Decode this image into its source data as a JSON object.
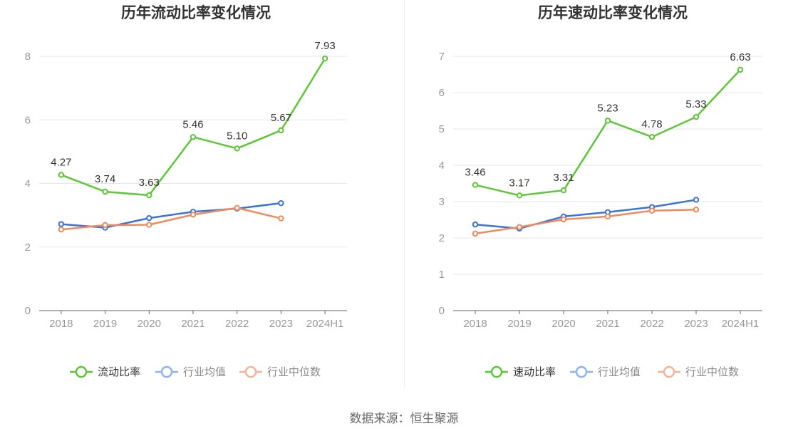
{
  "source": "数据来源：恒生聚源",
  "colors": {
    "main": "#5dc637",
    "avg": "#3a74d6",
    "median": "#f08a5d",
    "grid": "#e6e6e6",
    "axis": "#666666"
  },
  "chart_data": [
    {
      "type": "line",
      "title": "历年流动比率变化情况",
      "categories": [
        "2018",
        "2019",
        "2020",
        "2021",
        "2022",
        "2023",
        "2024H1"
      ],
      "ylim": [
        0,
        8
      ],
      "yticks": [
        0,
        2,
        4,
        6,
        8
      ],
      "grid": true,
      "legend": "bottom-center",
      "series": [
        {
          "name": "流动比率",
          "key": "main",
          "values": [
            4.27,
            3.74,
            3.63,
            5.46,
            5.1,
            5.67,
            7.93
          ],
          "labels": [
            "4.27",
            "3.74",
            "3.63",
            "5.46",
            "5.10",
            "5.67",
            "7.93"
          ]
        },
        {
          "name": "行业均值",
          "key": "avg",
          "values": [
            2.72,
            2.61,
            2.91,
            3.11,
            3.21,
            3.38,
            null
          ]
        },
        {
          "name": "行业中位数",
          "key": "median",
          "values": [
            2.55,
            2.69,
            2.7,
            3.02,
            3.23,
            2.9,
            null
          ]
        }
      ]
    },
    {
      "type": "line",
      "title": "历年速动比率变化情况",
      "categories": [
        "2018",
        "2019",
        "2020",
        "2021",
        "2022",
        "2023",
        "2024H1"
      ],
      "ylim": [
        0,
        7
      ],
      "yticks": [
        0,
        1,
        2,
        3,
        4,
        5,
        6,
        7
      ],
      "grid": true,
      "legend": "bottom-center",
      "series": [
        {
          "name": "速动比率",
          "key": "main",
          "values": [
            3.46,
            3.17,
            3.31,
            5.23,
            4.78,
            5.33,
            6.63
          ],
          "labels": [
            "3.46",
            "3.17",
            "3.31",
            "5.23",
            "4.78",
            "5.33",
            "6.63"
          ]
        },
        {
          "name": "行业均值",
          "key": "avg",
          "values": [
            2.37,
            2.26,
            2.59,
            2.71,
            2.85,
            3.05,
            null
          ]
        },
        {
          "name": "行业中位数",
          "key": "median",
          "values": [
            2.12,
            2.3,
            2.51,
            2.59,
            2.75,
            2.78,
            null
          ]
        }
      ]
    }
  ]
}
